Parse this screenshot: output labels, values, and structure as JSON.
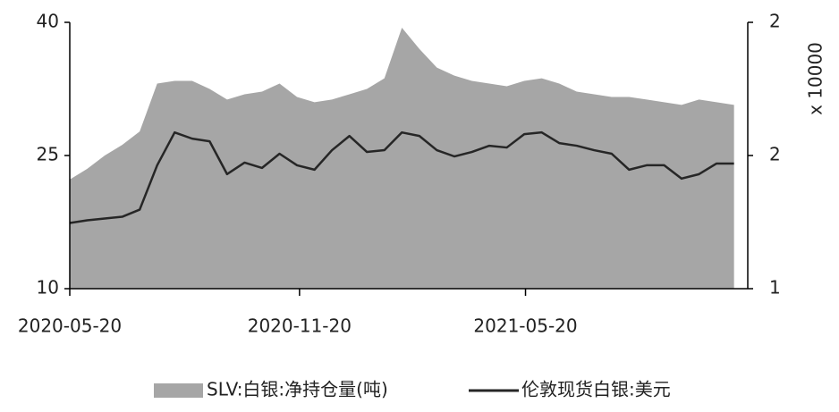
{
  "chart_data": {
    "type": "area-line",
    "x": [
      "2020-05-20",
      "2020-06-03",
      "2020-06-17",
      "2020-07-01",
      "2020-07-15",
      "2020-07-29",
      "2020-08-12",
      "2020-08-26",
      "2020-09-09",
      "2020-09-23",
      "2020-10-07",
      "2020-10-21",
      "2020-11-04",
      "2020-11-18",
      "2020-12-02",
      "2020-12-16",
      "2020-12-30",
      "2021-01-13",
      "2021-01-27",
      "2021-02-10",
      "2021-02-24",
      "2021-03-10",
      "2021-03-24",
      "2021-04-07",
      "2021-04-21",
      "2021-05-05",
      "2021-05-19",
      "2021-06-02",
      "2021-06-16",
      "2021-06-30",
      "2021-07-14",
      "2021-07-28",
      "2021-08-11",
      "2021-08-25",
      "2021-09-08",
      "2021-09-22",
      "2021-10-06",
      "2021-10-20",
      "2021-11-03"
    ],
    "xlim": [
      "2020-05-20",
      "2021-11-14"
    ],
    "xticks": [
      "2020-05-20",
      "2020-11-20",
      "2021-05-20"
    ],
    "ylim": [
      10,
      40
    ],
    "yticks": [
      10,
      25,
      40
    ],
    "y2lim": [
      1,
      2
    ],
    "y2ticks": [
      {
        "value": 1,
        "label": "1"
      },
      {
        "value": 1.5,
        "label": "2"
      },
      {
        "value": 2,
        "label": "2"
      }
    ],
    "y2label": "x 10000",
    "series": [
      {
        "name": "SLV:白银:净持仓量(吨)",
        "color": "#a6a6a6",
        "axis": "y2",
        "kind": "area",
        "values": [
          1.41,
          1.45,
          1.5,
          1.54,
          1.59,
          1.77,
          1.78,
          1.78,
          1.75,
          1.71,
          1.73,
          1.74,
          1.77,
          1.72,
          1.7,
          1.71,
          1.73,
          1.75,
          1.79,
          1.98,
          1.9,
          1.83,
          1.8,
          1.78,
          1.77,
          1.76,
          1.78,
          1.79,
          1.77,
          1.74,
          1.73,
          1.72,
          1.72,
          1.71,
          1.7,
          1.69,
          1.71,
          1.7,
          1.69
        ]
      },
      {
        "name": "伦敦现货白银:美元",
        "color": "#262626",
        "kind": "line",
        "values": [
          17.4,
          17.7,
          17.9,
          18.1,
          18.9,
          23.9,
          27.6,
          26.9,
          26.6,
          22.9,
          24.2,
          23.6,
          25.2,
          23.9,
          23.4,
          25.6,
          27.2,
          25.4,
          25.6,
          27.6,
          27.2,
          25.6,
          24.9,
          25.4,
          26.1,
          25.9,
          27.4,
          27.6,
          26.4,
          26.1,
          25.6,
          25.2,
          23.4,
          23.9,
          23.9,
          22.4,
          22.9,
          24.1,
          24.1
        ]
      }
    ]
  }
}
